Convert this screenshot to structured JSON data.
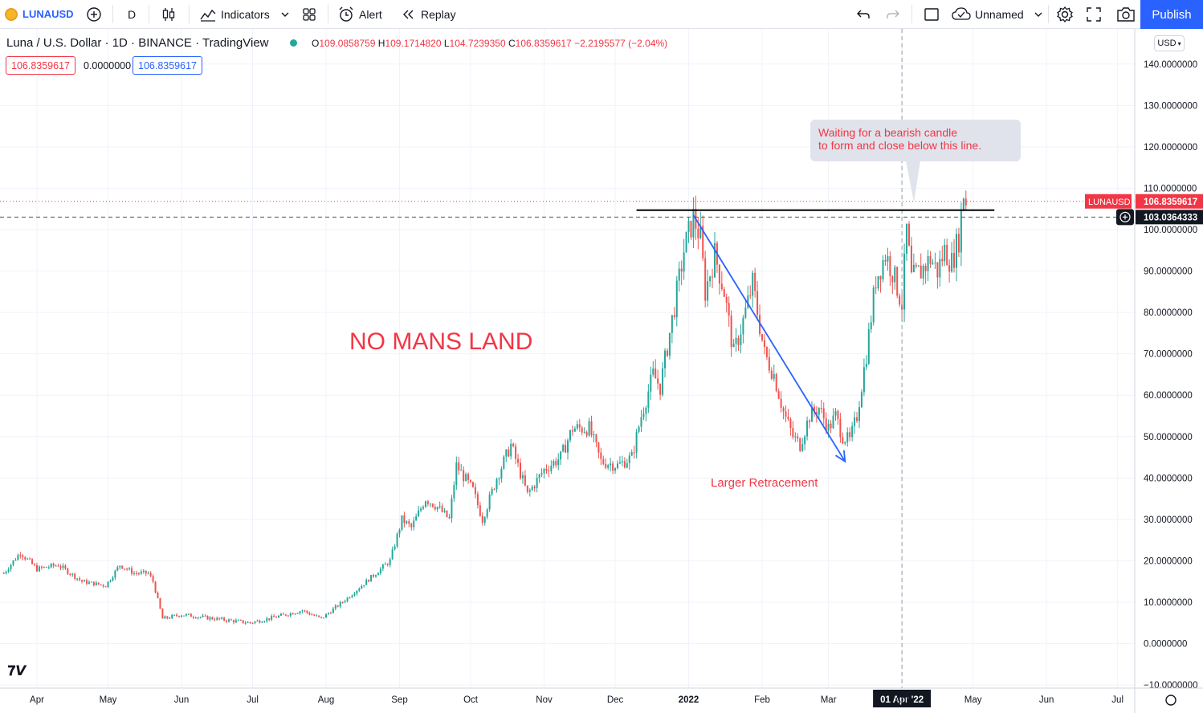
{
  "toolbar": {
    "symbol": "LUNAUSD",
    "interval": "D",
    "indicators_label": "Indicators",
    "alert_label": "Alert",
    "replay_label": "Replay",
    "layout_name": "Unnamed",
    "publish_label": "Publish",
    "currency": "USD"
  },
  "legend": {
    "title": "Luna / U.S. Dollar · 1D · BINANCE · TradingView",
    "o_key": "O",
    "o_val": "109.0858759",
    "h_key": "H",
    "h_val": "109.1714820",
    "l_key": "L",
    "l_val": "104.7239350",
    "c_key": "C",
    "c_val": "106.8359617",
    "change": "−2.2195577 (−2.04%)",
    "bid": "106.8359617",
    "spread": "0.0000000",
    "ask": "106.8359617"
  },
  "annotations": {
    "no_mans_land": "NO MANS LAND",
    "larger_retracement": "Larger Retracement",
    "callout_line1": "Waiting for a bearish candle",
    "callout_line2": "to form and close below this line."
  },
  "price_labels": {
    "symbol_tag": "LUNAUSD",
    "last_price": "106.8359617",
    "crosshair_price": "103.0364333",
    "crosshair_date": "01 Apr '22"
  },
  "colors": {
    "up": "#26a69a",
    "down": "#ef5350",
    "accent": "#2962ff",
    "annotation_red": "#f23645",
    "trend_blue": "#2962ff",
    "resistance_black": "#000000"
  },
  "chart_data": {
    "type": "candlestick",
    "title": "Luna / U.S. Dollar · 1D · BINANCE · TradingView",
    "ylim": [
      -10,
      140
    ],
    "y_ticks": [
      "140.0000000",
      "130.0000000",
      "120.0000000",
      "110.0000000",
      "100.0000000",
      "90.0000000",
      "80.0000000",
      "70.0000000",
      "60.0000000",
      "50.0000000",
      "40.0000000",
      "30.0000000",
      "20.0000000",
      "10.0000000",
      "0.0000000",
      "−10.0000000"
    ],
    "y_tick_values": [
      140,
      130,
      120,
      110,
      100,
      90,
      80,
      70,
      60,
      50,
      40,
      30,
      20,
      10,
      0,
      -10
    ],
    "x_ticks": [
      "Apr",
      "May",
      "Jun",
      "Jul",
      "Aug",
      "Sep",
      "Oct",
      "Nov",
      "Dec",
      "2022",
      "Feb",
      "Mar",
      "Apr",
      "May",
      "Jun",
      "Jul"
    ],
    "x_tick_dates": [
      "2021-04-01",
      "2021-05-01",
      "2021-06-01",
      "2021-07-01",
      "2021-08-01",
      "2021-09-01",
      "2021-10-01",
      "2021-11-01",
      "2021-12-01",
      "2022-01-01",
      "2022-02-01",
      "2022-03-01",
      "2022-04-01",
      "2022-05-01",
      "2022-06-01",
      "2022-07-01"
    ],
    "x_range": [
      "2021-03-18",
      "2022-07-21"
    ],
    "price_trajectory": [
      [
        "2021-03-18",
        17
      ],
      [
        "2021-03-25",
        22
      ],
      [
        "2021-04-01",
        18
      ],
      [
        "2021-04-10",
        19
      ],
      [
        "2021-04-20",
        15
      ],
      [
        "2021-04-30",
        14
      ],
      [
        "2021-05-06",
        19
      ],
      [
        "2021-05-12",
        17
      ],
      [
        "2021-05-18",
        17
      ],
      [
        "2021-05-20",
        15
      ],
      [
        "2021-05-24",
        6
      ],
      [
        "2021-06-01",
        7
      ],
      [
        "2021-06-15",
        6
      ],
      [
        "2021-06-30",
        5
      ],
      [
        "2021-07-15",
        7
      ],
      [
        "2021-07-22",
        8
      ],
      [
        "2021-07-30",
        6
      ],
      [
        "2021-08-10",
        11
      ],
      [
        "2021-08-20",
        16
      ],
      [
        "2021-08-28",
        20
      ],
      [
        "2021-09-02",
        30
      ],
      [
        "2021-09-06",
        28
      ],
      [
        "2021-09-12",
        35
      ],
      [
        "2021-09-17",
        33
      ],
      [
        "2021-09-22",
        30
      ],
      [
        "2021-09-25",
        43
      ],
      [
        "2021-10-02",
        37
      ],
      [
        "2021-10-06",
        30
      ],
      [
        "2021-10-12",
        40
      ],
      [
        "2021-10-18",
        48
      ],
      [
        "2021-10-25",
        36
      ],
      [
        "2021-11-01",
        42
      ],
      [
        "2021-11-08",
        45
      ],
      [
        "2021-11-13",
        52
      ],
      [
        "2021-11-20",
        52
      ],
      [
        "2021-11-25",
        44
      ],
      [
        "2021-12-02",
        43
      ],
      [
        "2021-12-08",
        45
      ],
      [
        "2021-12-12",
        55
      ],
      [
        "2021-12-17",
        65
      ],
      [
        "2021-12-20",
        62
      ],
      [
        "2021-12-24",
        75
      ],
      [
        "2021-12-28",
        88
      ],
      [
        "2021-12-30",
        95
      ],
      [
        "2022-01-03",
        103
      ],
      [
        "2022-01-06",
        98
      ],
      [
        "2022-01-08",
        85
      ],
      [
        "2022-01-12",
        94
      ],
      [
        "2022-01-16",
        85
      ],
      [
        "2022-01-20",
        70
      ],
      [
        "2022-01-24",
        78
      ],
      [
        "2022-01-28",
        87
      ],
      [
        "2022-02-02",
        70
      ],
      [
        "2022-02-06",
        65
      ],
      [
        "2022-02-10",
        56
      ],
      [
        "2022-02-14",
        50
      ],
      [
        "2022-02-17",
        48
      ],
      [
        "2022-02-21",
        55
      ],
      [
        "2022-02-25",
        57
      ],
      [
        "2022-03-01",
        52
      ],
      [
        "2022-03-04",
        55
      ],
      [
        "2022-03-07",
        50
      ],
      [
        "2022-03-10",
        49
      ],
      [
        "2022-03-13",
        55
      ],
      [
        "2022-03-17",
        70
      ],
      [
        "2022-03-21",
        88
      ],
      [
        "2022-03-25",
        94
      ],
      [
        "2022-03-28",
        90
      ],
      [
        "2022-04-01",
        82
      ],
      [
        "2022-04-03",
        100
      ],
      [
        "2022-04-05",
        88
      ],
      [
        "2022-04-09",
        90
      ],
      [
        "2022-04-13",
        93
      ],
      [
        "2022-04-16",
        90
      ],
      [
        "2022-04-19",
        95
      ],
      [
        "2022-04-22",
        92
      ],
      [
        "2022-04-25",
        98
      ],
      [
        "2022-04-27",
        109
      ],
      [
        "2022-04-28",
        106.8
      ]
    ],
    "last_close": 106.8359617,
    "resistance_level": 104.7,
    "crosshair_price": 103.0364333,
    "trend_line": {
      "from": [
        "2022-01-03",
        103.5
      ],
      "to": [
        "2022-03-08",
        44
      ]
    },
    "grid": true
  }
}
